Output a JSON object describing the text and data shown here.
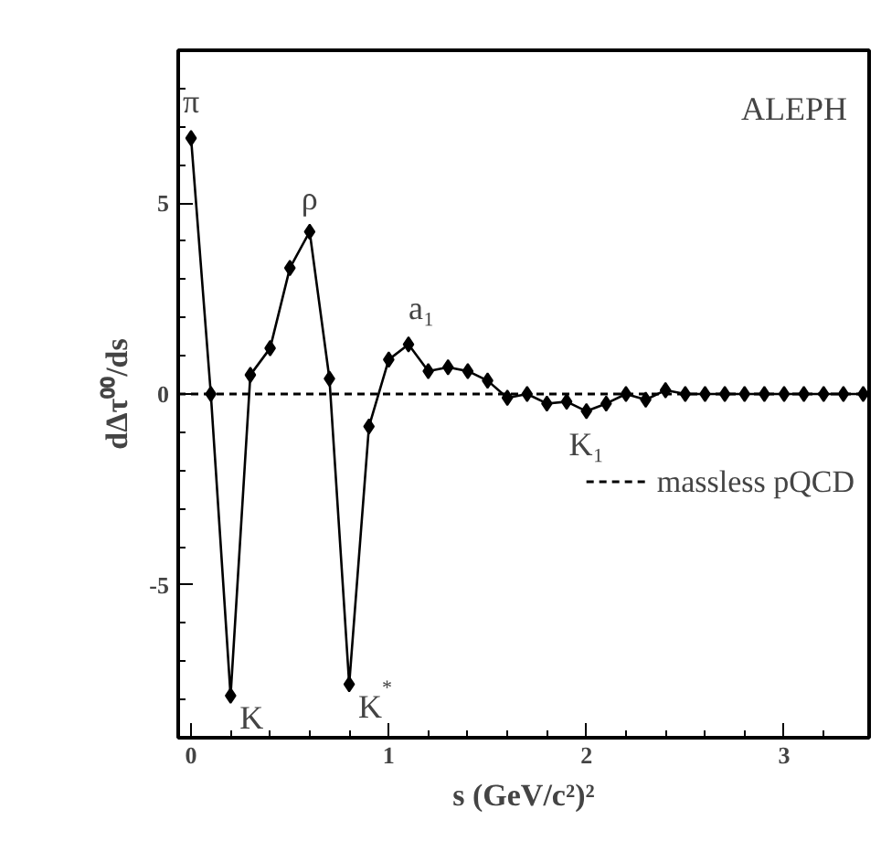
{
  "chart_data": {
    "type": "line",
    "xlabel": "s (GeV/c²)²",
    "ylabel": "dΔτ⁰⁰/ds",
    "x": [
      0,
      0.1,
      0.2,
      0.3,
      0.4,
      0.5,
      0.6,
      0.7,
      0.8,
      0.9,
      1.0,
      1.1,
      1.2,
      1.3,
      1.4,
      1.5,
      1.6,
      1.7,
      1.8,
      1.9,
      2.0,
      2.1,
      2.2,
      2.3,
      2.4,
      2.5,
      2.6,
      2.7,
      2.8,
      2.9,
      3.0,
      3.1,
      3.2,
      3.3,
      3.4
    ],
    "series": [
      {
        "color": "#000000",
        "values": [
          6.7,
          0.0,
          -7.9,
          0.5,
          1.2,
          3.3,
          4.25,
          0.4,
          -7.6,
          -0.85,
          0.9,
          1.3,
          0.6,
          0.7,
          0.6,
          0.35,
          -0.1,
          0.0,
          -0.25,
          -0.2,
          -0.45,
          -0.25,
          0.0,
          -0.15,
          0.1,
          0.0,
          0.0,
          0.0,
          0.0,
          0.0,
          0.0,
          0.0,
          0.0,
          0.0,
          0.0
        ]
      }
    ],
    "marker": "diamond",
    "xlim": [
      -0.065,
      3.43
    ],
    "ylim": [
      -9,
      9
    ],
    "xticks": [
      0,
      {
        "value": 0.2,
        "label": null
      },
      {
        "value": 0.4,
        "label": null
      },
      {
        "value": 0.6,
        "label": null
      },
      {
        "value": 0.8,
        "label": null
      },
      1,
      {
        "value": 1.2,
        "label": null
      },
      {
        "value": 1.4,
        "label": null
      },
      {
        "value": 1.6,
        "label": null
      },
      {
        "value": 1.8,
        "label": null
      },
      2,
      {
        "value": 2.2,
        "label": null
      },
      {
        "value": 2.4,
        "label": null
      },
      {
        "value": 2.6,
        "label": null
      },
      {
        "value": 2.8,
        "label": null
      },
      3,
      {
        "value": 3.2,
        "label": null
      }
    ],
    "yticks": [
      {
        "value": -8,
        "label": null
      },
      {
        "value": -7,
        "label": null
      },
      {
        "value": -6,
        "label": null
      },
      -5,
      {
        "value": -4,
        "label": null
      },
      {
        "value": -3,
        "label": null
      },
      {
        "value": -2,
        "label": null
      },
      {
        "value": -1,
        "label": null
      },
      0,
      {
        "value": 1,
        "label": null
      },
      {
        "value": 2,
        "label": null
      },
      {
        "value": 3,
        "label": null
      },
      {
        "value": 4,
        "label": null
      },
      5,
      {
        "value": 6,
        "label": null
      },
      {
        "value": 7,
        "label": null
      },
      {
        "value": 8,
        "label": null
      }
    ],
    "ref_lines": [
      {
        "axis": "y",
        "value": 0,
        "label": "massless pQCD",
        "color": "#000000",
        "line_style": "dashed"
      }
    ],
    "annotations": [
      {
        "text": "π",
        "x": 0,
        "y": 6.7
      },
      {
        "text": "ρ",
        "x": 0.6,
        "y": 4.25
      },
      {
        "text": "a₁",
        "x": 1.1,
        "y": 1.3
      },
      {
        "text": "K",
        "x": 0.2,
        "y": -7.9
      },
      {
        "text": "K$^{*}$",
        "x": 0.8,
        "y": -7.6
      },
      {
        "text": "K₁",
        "x": 2.0,
        "y": -0.45
      },
      "ALEPH"
    ],
    "grid": false
  }
}
